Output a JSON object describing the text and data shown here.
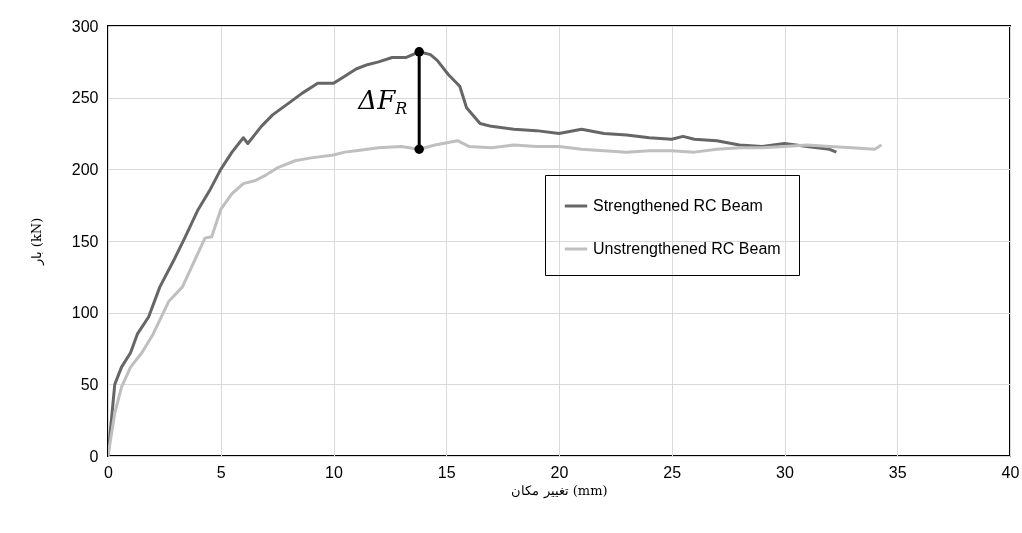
{
  "chart_data": {
    "type": "line",
    "xlabel": "تغییر مکان (mm)",
    "ylabel": "بار (kN)",
    "xlim": [
      0,
      40
    ],
    "ylim": [
      0,
      300
    ],
    "xticks": [
      0,
      5,
      10,
      15,
      20,
      25,
      30,
      35,
      40
    ],
    "yticks": [
      0,
      50,
      100,
      150,
      200,
      250,
      300
    ],
    "grid": true,
    "legend": "right",
    "line_style": "solid",
    "annotations": [
      {
        "text": "ΔF$_{R}$",
        "x": 13.8,
        "y": 248
      }
    ],
    "series": [
      {
        "name": "Strengthened RC Beam",
        "color": "#666666",
        "x": [
          0,
          0.3,
          0.6,
          1,
          1.3,
          1.8,
          2.3,
          2.9,
          3.4,
          4,
          4.5,
          5,
          5.5,
          6,
          6.2,
          6.8,
          7.3,
          8,
          8.6,
          9.3,
          10,
          10.5,
          11,
          11.5,
          12,
          12.6,
          13.2,
          13.8,
          14.3,
          14.6,
          15.1,
          15.6,
          15.9,
          16.5,
          17,
          18,
          19,
          20,
          21,
          22,
          23,
          24,
          25,
          25.5,
          26,
          27,
          28,
          29,
          30,
          31,
          32,
          32.3
        ],
        "values": [
          0,
          50,
          62,
          72,
          85,
          97,
          118,
          136,
          152,
          172,
          185,
          200,
          212,
          222,
          218,
          230,
          238,
          246,
          253,
          260,
          260,
          265,
          270,
          273,
          275,
          278,
          278,
          282,
          280,
          276,
          266,
          258,
          243,
          232,
          230,
          228,
          227,
          225,
          228,
          225,
          224,
          222,
          221,
          223,
          221,
          220,
          217,
          216,
          218,
          216,
          214,
          212
        ]
      },
      {
        "name": "Unstrengthened RC Beam",
        "color": "#bfbfbf",
        "x": [
          0,
          0.3,
          0.6,
          1,
          1.5,
          2,
          2.7,
          3.3,
          3.8,
          4.3,
          4.6,
          5,
          5.5,
          6,
          6.5,
          7,
          7.5,
          8.3,
          9,
          10,
          10.5,
          11,
          12,
          13,
          13.8,
          14.5,
          15.5,
          16,
          17,
          18,
          19,
          20,
          21,
          22,
          23,
          24,
          25,
          26,
          27,
          28,
          29,
          30,
          31,
          32,
          33,
          34,
          34.3
        ],
        "values": [
          0,
          30,
          48,
          62,
          72,
          85,
          108,
          118,
          135,
          152,
          153,
          172,
          183,
          190,
          192,
          196,
          201,
          206,
          208,
          210,
          212,
          213,
          215,
          216,
          214,
          217,
          220,
          216,
          215,
          217,
          216,
          216,
          214,
          213,
          212,
          213,
          213,
          212,
          214,
          215,
          215,
          216,
          217,
          216,
          215,
          214,
          217
        ]
      },
      {
        "color": "#000000",
        "marker": "circle",
        "x": [
          13.8,
          13.8
        ],
        "values": [
          214,
          282
        ]
      }
    ]
  }
}
